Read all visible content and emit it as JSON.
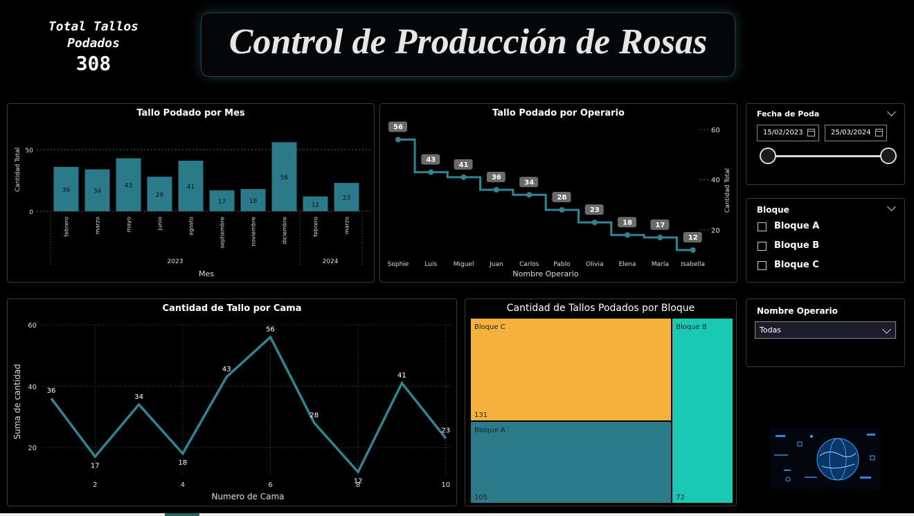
{
  "kpi": {
    "label_line1": "Total Tallos",
    "label_line2": "Podados",
    "value": "308"
  },
  "header": {
    "title": "Control de Producción de Rosas"
  },
  "month_chart": {
    "title": "Tallo Podado por Mes",
    "ylabel": "Cantidad Total",
    "xlabel": "Mes",
    "yticks": [
      "0",
      "50"
    ],
    "years": [
      "2023",
      "2024"
    ]
  },
  "operator_chart": {
    "title": "Tallo Podado por Operario",
    "ylabel": "Cantidad Total",
    "xlabel": "Nombre Operario",
    "yticks": [
      "20",
      "40",
      "60"
    ]
  },
  "bed_chart": {
    "title": "Cantidad de Tallo por Cama",
    "ylabel": "Suma de cantidad",
    "xlabel": "Numero de Cama",
    "yticks": [
      "20",
      "40",
      "60"
    ],
    "xticks": [
      "2",
      "4",
      "6",
      "8",
      "10"
    ]
  },
  "block_treemap": {
    "title": "Cantidad de Tallos Podados por Bloque"
  },
  "slicers": {
    "date": {
      "title": "Fecha de Poda",
      "start": "15/02/2023",
      "end": "25/03/2024"
    },
    "block": {
      "title": "Bloque",
      "options": [
        "Bloque A",
        "Bloque B",
        "Bloque C"
      ]
    },
    "operator": {
      "title": "Nombre Operario",
      "selected": "Todas"
    }
  },
  "colors": {
    "bar": "#2b7a8a",
    "line": "#2f8593",
    "bloque_c": "#f4b23c",
    "bloque_a": "#2b7a8a",
    "bloque_b": "#19c9b4"
  },
  "chart_data": [
    {
      "type": "bar",
      "title": "Tallo Podado por Mes",
      "xlabel": "Mes",
      "ylabel": "Cantidad Total",
      "categories": [
        "febrero",
        "marzo",
        "mayo",
        "junio",
        "agosto",
        "septiembre",
        "noviembre",
        "diciembre",
        "febrero",
        "marzo"
      ],
      "year_groups": [
        {
          "year": "2023",
          "count": 8
        },
        {
          "year": "2024",
          "count": 2
        }
      ],
      "values": [
        36,
        34,
        43,
        28,
        41,
        17,
        18,
        56,
        12,
        23
      ],
      "ylim": [
        0,
        60
      ]
    },
    {
      "type": "line",
      "title": "Tallo Podado por Operario",
      "xlabel": "Nombre Operario",
      "ylabel": "Cantidad Total",
      "categories": [
        "Sophie",
        "Luis",
        "Miguel",
        "Juan",
        "Carlos",
        "Pablo",
        "Olivia",
        "Elena",
        "María",
        "Isabella"
      ],
      "values": [
        56,
        43,
        41,
        36,
        34,
        28,
        23,
        18,
        17,
        12
      ],
      "ylim": [
        10,
        62
      ]
    },
    {
      "type": "line",
      "title": "Cantidad de Tallo por Cama",
      "xlabel": "Numero de Cama",
      "ylabel": "Suma de cantidad",
      "x": [
        1,
        2,
        3,
        4,
        5,
        6,
        7,
        8,
        9,
        10
      ],
      "values": [
        36,
        17,
        34,
        18,
        43,
        56,
        28,
        12,
        41,
        23
      ],
      "ylim": [
        10,
        60
      ]
    },
    {
      "type": "treemap",
      "title": "Cantidad de Tallos Podados por Bloque",
      "categories": [
        "Bloque C",
        "Bloque A",
        "Bloque B"
      ],
      "values": [
        131,
        105,
        72
      ]
    }
  ]
}
